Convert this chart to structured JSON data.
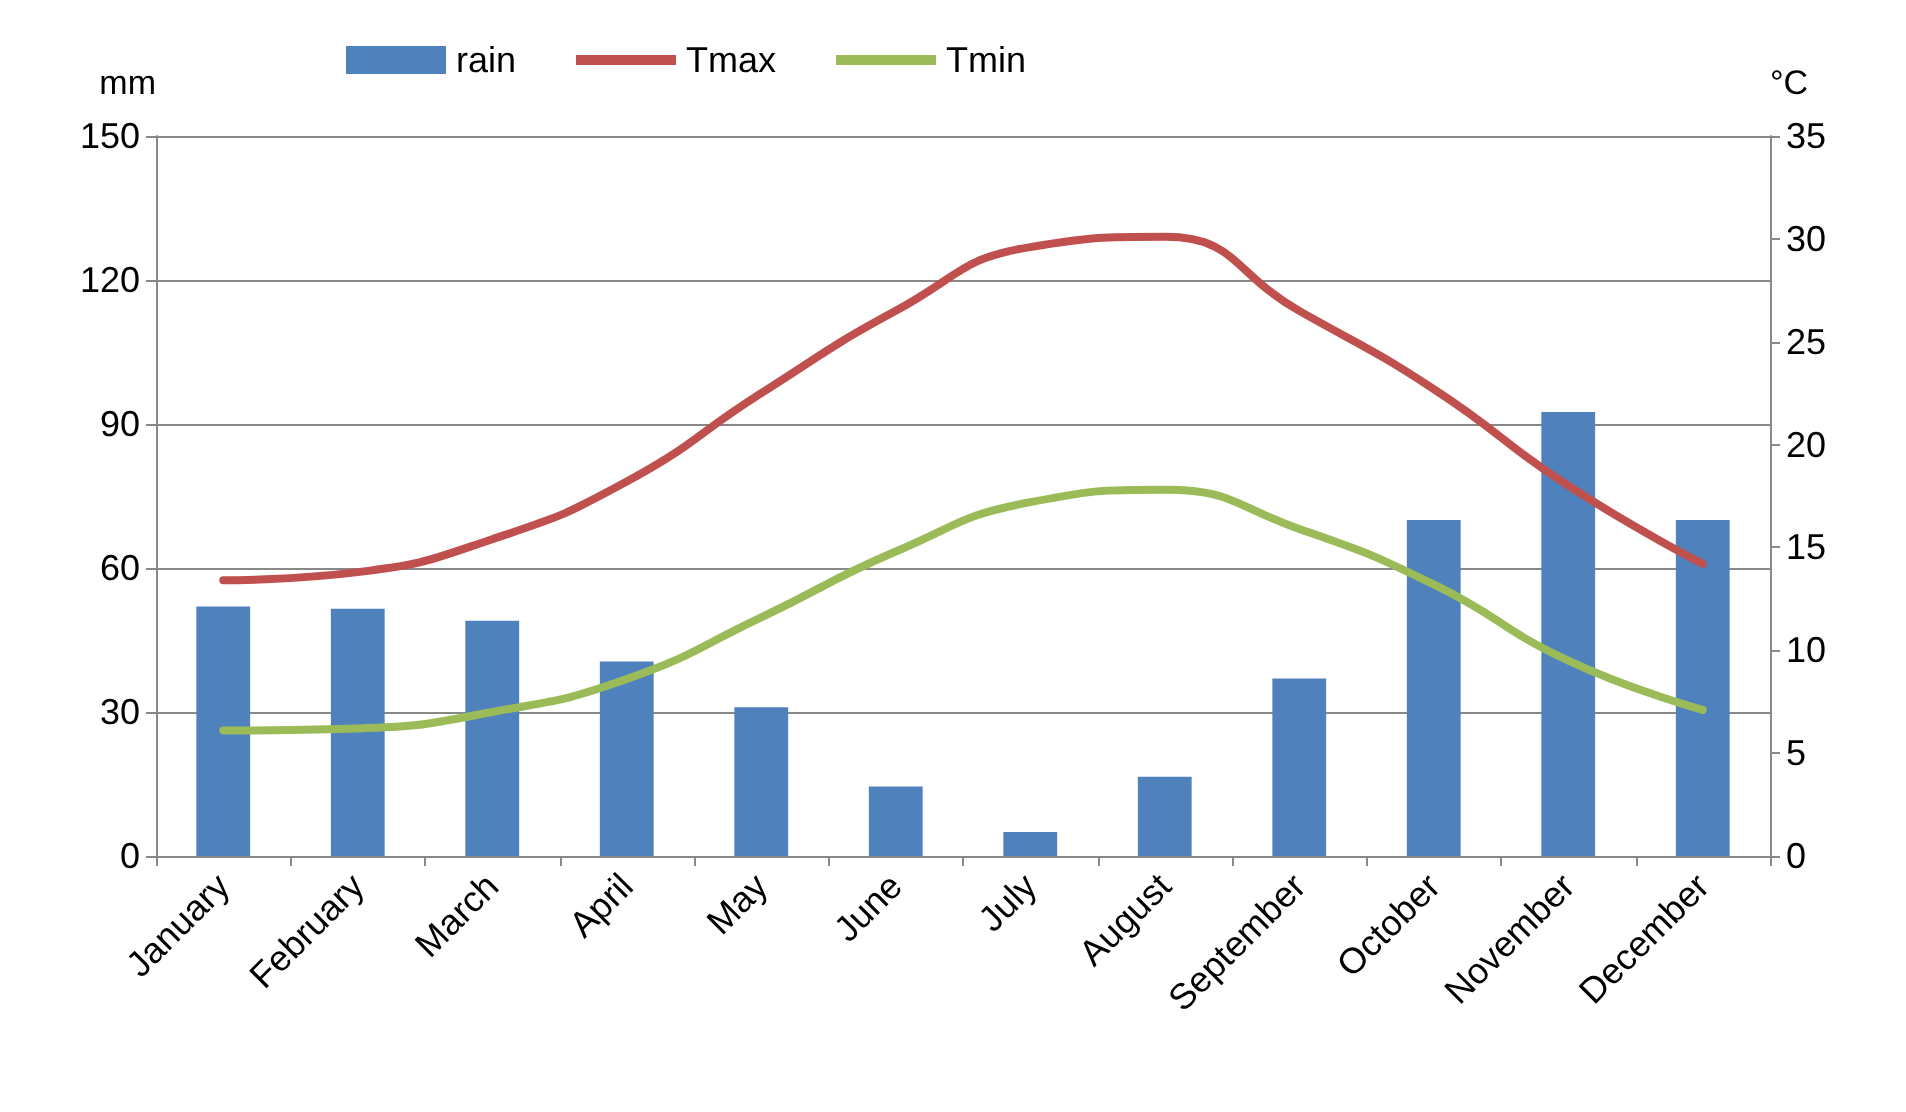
{
  "chart_data": {
    "type": "bar",
    "categories": [
      "January",
      "February",
      "March",
      "April",
      "May",
      "June",
      "July",
      "August",
      "September",
      "October",
      "November",
      "December"
    ],
    "series": [
      {
        "name": "rain",
        "color": "#4f81bd",
        "values": [
          52,
          51.5,
          49,
          40.5,
          31,
          14.5,
          5,
          16.5,
          37,
          70,
          92.5,
          70
        ]
      },
      {
        "name": "Tmax",
        "type": "line",
        "axis": "y2",
        "color": "#c0504d",
        "values": [
          13.4,
          13.8,
          15.4,
          18.2,
          22.5,
          26.5,
          29.6,
          30.1,
          26.5,
          22.7,
          18.0,
          14.2
        ]
      },
      {
        "name": "Tmin",
        "type": "line",
        "axis": "y2",
        "color": "#9bbb59",
        "values": [
          6.1,
          6.2,
          7.0,
          8.6,
          11.6,
          14.8,
          17.2,
          17.8,
          15.9,
          13.2,
          9.5,
          7.1
        ]
      }
    ],
    "ylabel": "mm",
    "y2label": "°C",
    "ylim": [
      0,
      150
    ],
    "yticks": [
      0,
      30,
      60,
      90,
      120,
      150
    ],
    "y2lim": [
      0,
      35
    ],
    "y2ticks": [
      0,
      5,
      10,
      15,
      20,
      25,
      30,
      35
    ],
    "grid": "y",
    "legend": "top",
    "marker": "none",
    "line_style": "solid"
  }
}
